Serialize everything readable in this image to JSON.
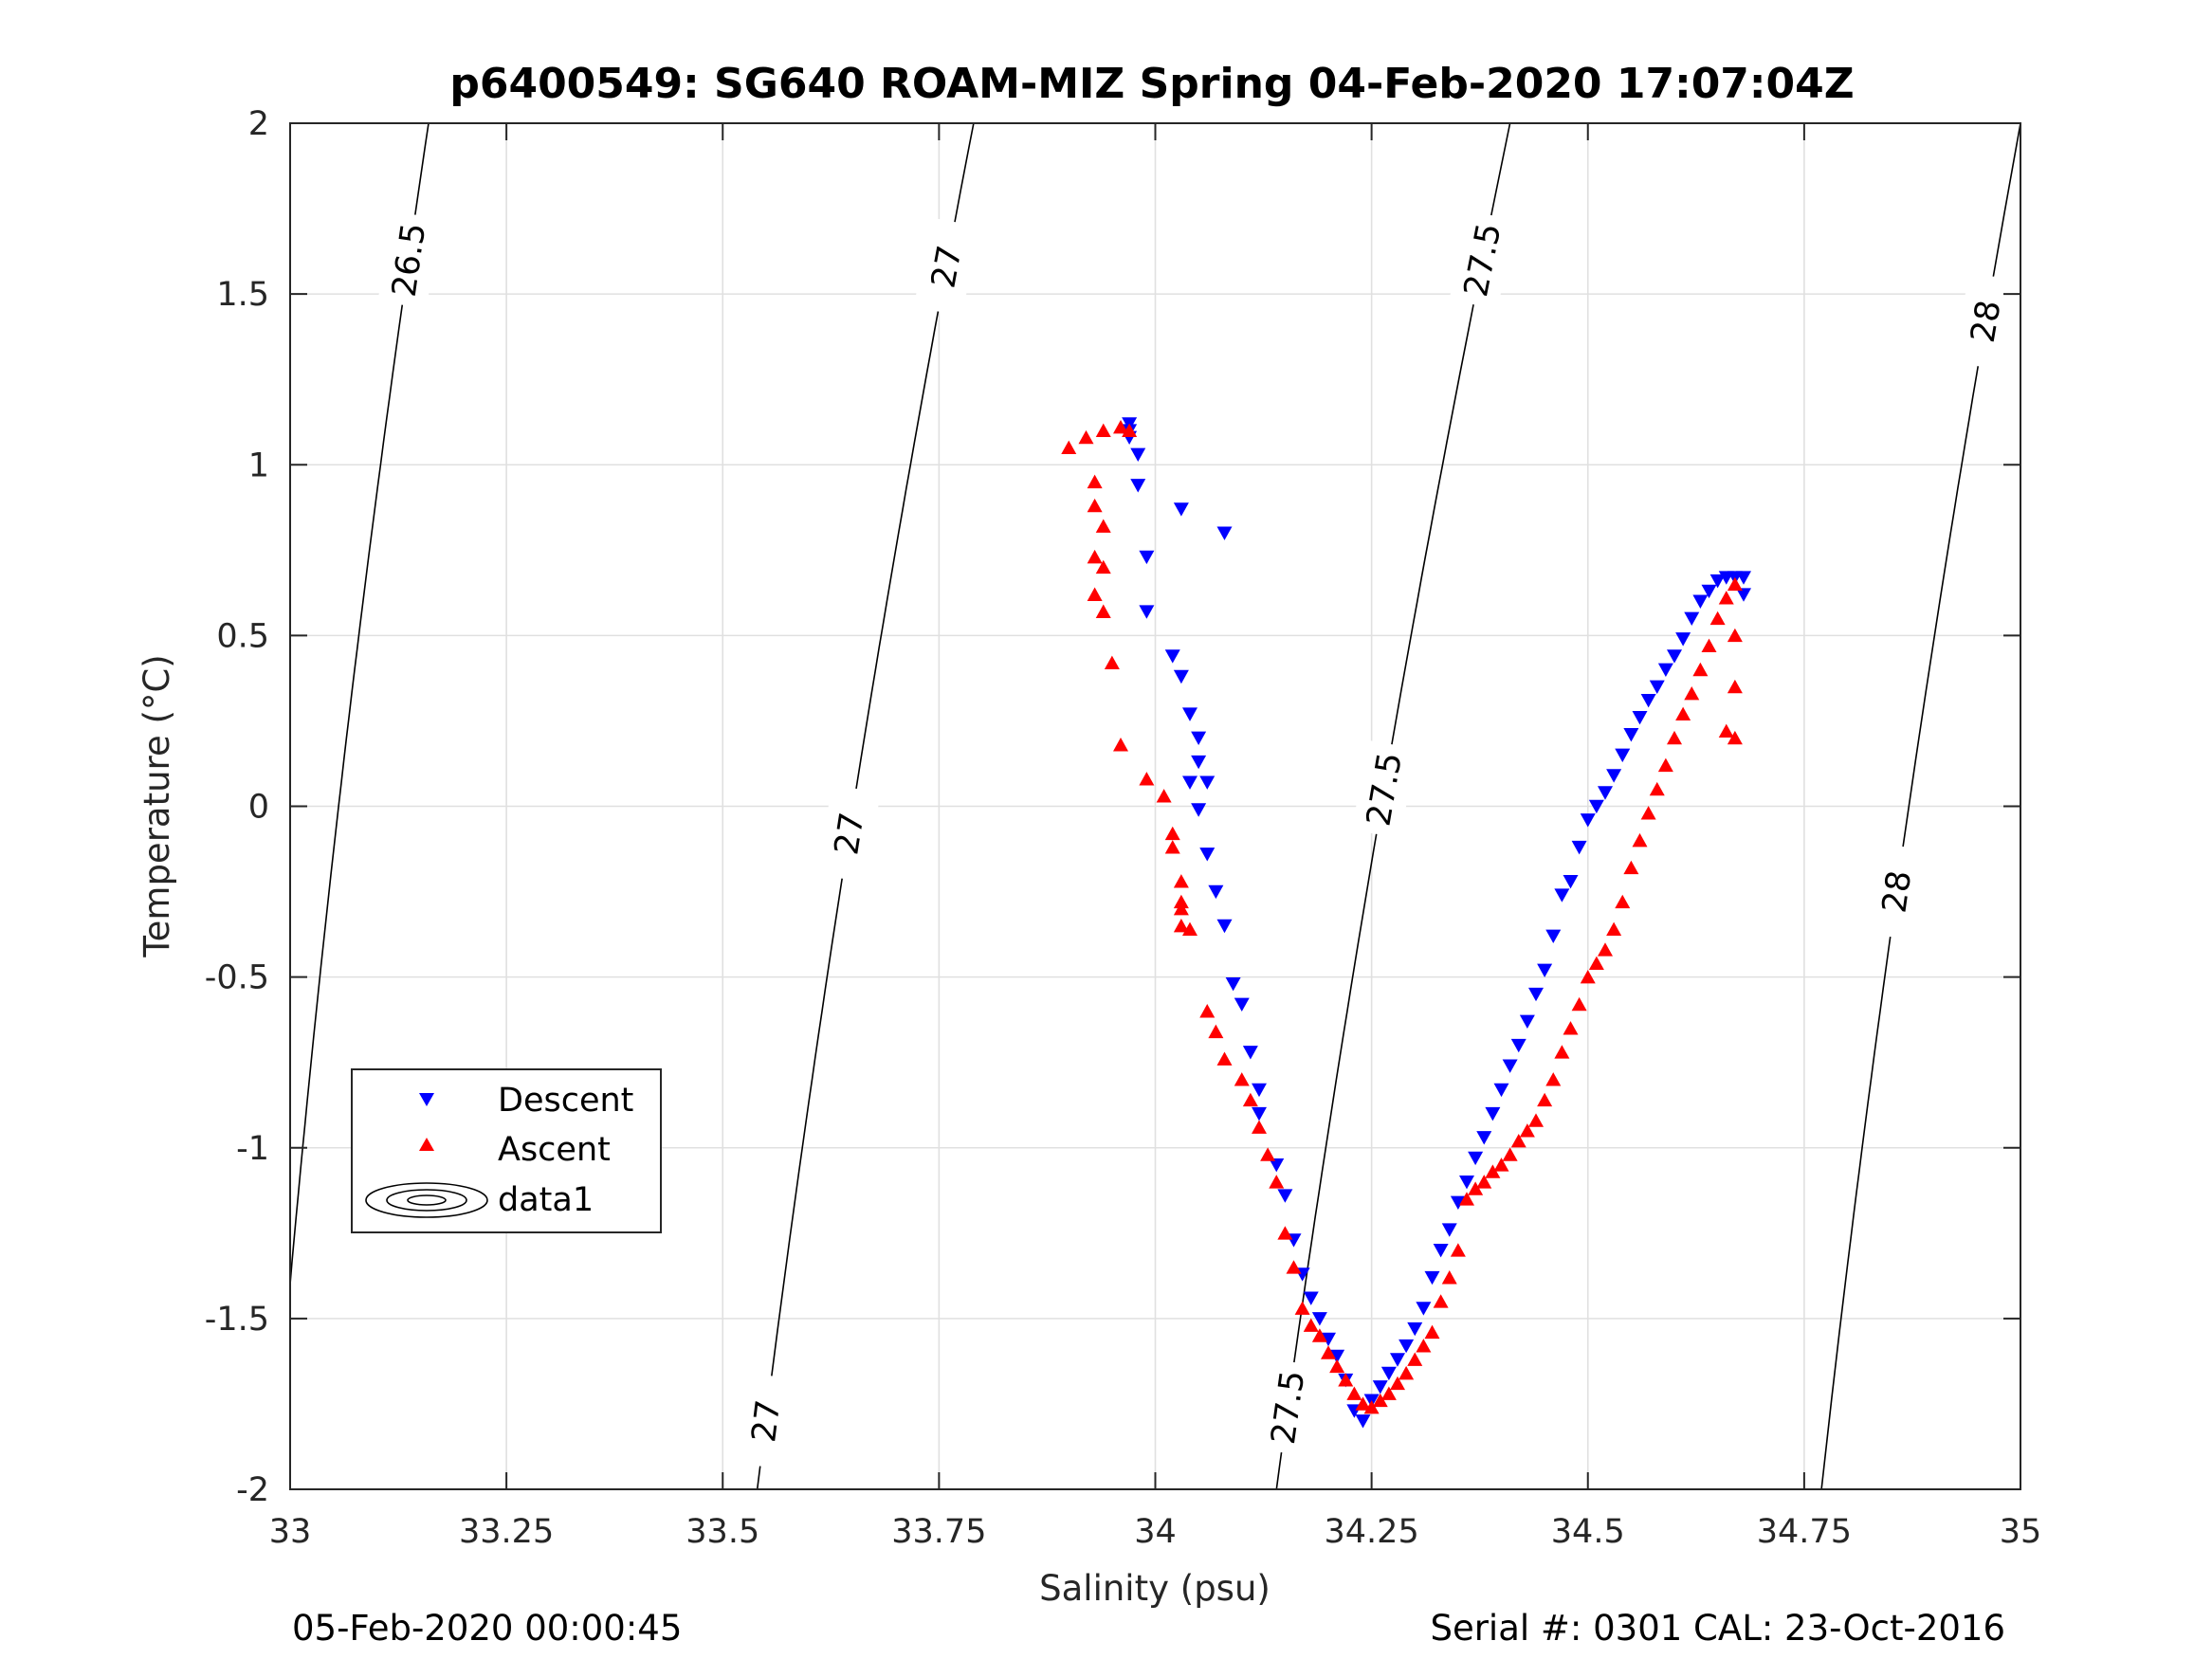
{
  "chart_data": {
    "type": "scatter",
    "title": "p6400549: SG640 ROAM-MIZ Spring 04-Feb-2020 17:07:04Z",
    "xlabel": "Salinity (psu)",
    "ylabel": "Temperature (°C)",
    "xlim": [
      33,
      35
    ],
    "ylim": [
      -2,
      2
    ],
    "x_ticks": [
      33,
      33.25,
      33.5,
      33.75,
      34,
      34.25,
      34.5,
      34.75,
      35
    ],
    "x_tick_labels": [
      "33",
      "33.25",
      "33.5",
      "33.75",
      "34",
      "34.25",
      "34.5",
      "34.75",
      "35"
    ],
    "y_ticks": [
      -2,
      -1.5,
      -1,
      -0.5,
      0,
      0.5,
      1,
      1.5,
      2
    ],
    "y_tick_labels": [
      "-2",
      "-1.5",
      "-1",
      "-0.5",
      "0",
      "0.5",
      "1",
      "1.5",
      "2"
    ],
    "grid": true,
    "legend_position": "lower-left",
    "legend": [
      "Descent",
      "Ascent",
      "data1"
    ],
    "colors": {
      "descent": "#0000ff",
      "ascent": "#ff0000",
      "contour": "#000000",
      "grid": "#e0e0e0"
    },
    "series": [
      {
        "name": "Descent",
        "marker": "triangle-down",
        "x": [
          33.97,
          33.97,
          33.98,
          33.97,
          33.98,
          34.03,
          34.08,
          33.99,
          33.99,
          34.02,
          34.03,
          34.04,
          34.05,
          34.05,
          34.06,
          34.04,
          34.05,
          34.06,
          34.07,
          34.08,
          34.09,
          34.1,
          34.11,
          34.12,
          34.12,
          34.14,
          34.15,
          34.16,
          34.17,
          34.18,
          34.19,
          34.2,
          34.21,
          34.22,
          34.23,
          34.24,
          34.25,
          34.26,
          34.27,
          34.28,
          34.29,
          34.3,
          34.31,
          34.32,
          34.33,
          34.34,
          34.35,
          34.36,
          34.37,
          34.38,
          34.39,
          34.4,
          34.41,
          34.42,
          34.43,
          34.44,
          34.45,
          34.46,
          34.47,
          34.48,
          34.49,
          34.5,
          34.51,
          34.52,
          34.53,
          34.54,
          34.55,
          34.56,
          34.57,
          34.58,
          34.59,
          34.6,
          34.61,
          34.62,
          34.63,
          34.64,
          34.65,
          34.66,
          34.67,
          34.68,
          34.68
        ],
        "y": [
          1.12,
          1.08,
          1.03,
          1.1,
          0.94,
          0.87,
          0.8,
          0.73,
          0.57,
          0.44,
          0.38,
          0.27,
          0.2,
          0.13,
          0.07,
          0.07,
          -0.01,
          -0.14,
          -0.25,
          -0.35,
          -0.52,
          -0.58,
          -0.72,
          -0.83,
          -0.9,
          -1.05,
          -1.14,
          -1.27,
          -1.37,
          -1.44,
          -1.5,
          -1.56,
          -1.61,
          -1.68,
          -1.77,
          -1.8,
          -1.74,
          -1.7,
          -1.66,
          -1.62,
          -1.58,
          -1.53,
          -1.47,
          -1.38,
          -1.3,
          -1.24,
          -1.16,
          -1.1,
          -1.03,
          -0.97,
          -0.9,
          -0.83,
          -0.76,
          -0.7,
          -0.63,
          -0.55,
          -0.48,
          -0.38,
          -0.26,
          -0.22,
          -0.12,
          -0.04,
          0.0,
          0.04,
          0.09,
          0.15,
          0.21,
          0.26,
          0.31,
          0.35,
          0.4,
          0.44,
          0.49,
          0.55,
          0.6,
          0.63,
          0.66,
          0.67,
          0.67,
          0.67,
          0.62
        ]
      },
      {
        "name": "Ascent",
        "marker": "triangle-up",
        "x": [
          33.9,
          33.92,
          33.94,
          33.96,
          33.97,
          33.93,
          33.93,
          33.94,
          33.93,
          33.94,
          33.93,
          33.94,
          33.95,
          33.96,
          33.99,
          34.01,
          34.02,
          34.02,
          34.03,
          34.03,
          34.03,
          34.04,
          34.03,
          34.06,
          34.07,
          34.08,
          34.1,
          34.11,
          34.12,
          34.13,
          34.14,
          34.15,
          34.16,
          34.17,
          34.18,
          34.19,
          34.2,
          34.21,
          34.22,
          34.23,
          34.24,
          34.25,
          34.26,
          34.27,
          34.28,
          34.29,
          34.3,
          34.31,
          34.32,
          34.33,
          34.34,
          34.35,
          34.36,
          34.37,
          34.38,
          34.39,
          34.4,
          34.41,
          34.42,
          34.43,
          34.44,
          34.45,
          34.46,
          34.47,
          34.48,
          34.49,
          34.5,
          34.51,
          34.52,
          34.53,
          34.54,
          34.55,
          34.56,
          34.57,
          34.58,
          34.59,
          34.6,
          34.61,
          34.62,
          34.63,
          34.64,
          34.65,
          34.66,
          34.67,
          34.67,
          34.67,
          34.66,
          34.67
        ],
        "y": [
          1.05,
          1.08,
          1.1,
          1.11,
          1.1,
          0.95,
          0.88,
          0.82,
          0.73,
          0.7,
          0.62,
          0.57,
          0.42,
          0.18,
          0.08,
          0.03,
          -0.08,
          -0.12,
          -0.22,
          -0.28,
          -0.3,
          -0.36,
          -0.35,
          -0.6,
          -0.66,
          -0.74,
          -0.8,
          -0.86,
          -0.94,
          -1.02,
          -1.1,
          -1.25,
          -1.35,
          -1.47,
          -1.52,
          -1.55,
          -1.6,
          -1.64,
          -1.68,
          -1.72,
          -1.75,
          -1.76,
          -1.74,
          -1.72,
          -1.69,
          -1.66,
          -1.62,
          -1.58,
          -1.54,
          -1.45,
          -1.38,
          -1.3,
          -1.15,
          -1.12,
          -1.1,
          -1.07,
          -1.05,
          -1.02,
          -0.98,
          -0.95,
          -0.92,
          -0.86,
          -0.8,
          -0.72,
          -0.65,
          -0.58,
          -0.5,
          -0.46,
          -0.42,
          -0.36,
          -0.28,
          -0.18,
          -0.1,
          -0.02,
          0.05,
          0.12,
          0.2,
          0.27,
          0.33,
          0.4,
          0.47,
          0.55,
          0.61,
          0.65,
          0.5,
          0.35,
          0.22,
          0.2
        ]
      }
    ],
    "contours": [
      {
        "level": "26.5",
        "x0": 32.98,
        "x1": 33.16,
        "labels": [
          {
            "text": "26.5",
            "t": 1.6
          }
        ]
      },
      {
        "level": "27",
        "x0": 33.54,
        "x1": 33.79,
        "labels": [
          {
            "text": "27",
            "t": -1.8
          },
          {
            "text": "27",
            "t": -0.08
          },
          {
            "text": "27",
            "t": 1.58
          }
        ]
      },
      {
        "level": "27.5",
        "x0": 34.14,
        "x1": 34.41,
        "labels": [
          {
            "text": "27.5",
            "t": -1.76
          },
          {
            "text": "27.5",
            "t": 0.05
          },
          {
            "text": "27.5",
            "t": 1.6
          }
        ]
      },
      {
        "level": "28",
        "x0": 34.77,
        "x1": 35.0,
        "labels": [
          {
            "text": "28",
            "t": -0.25
          },
          {
            "text": "28",
            "t": 1.42
          }
        ]
      }
    ]
  },
  "footer": {
    "left": "05-Feb-2020 00:00:45",
    "right": "Serial #: 0301  CAL: 23-Oct-2016"
  }
}
